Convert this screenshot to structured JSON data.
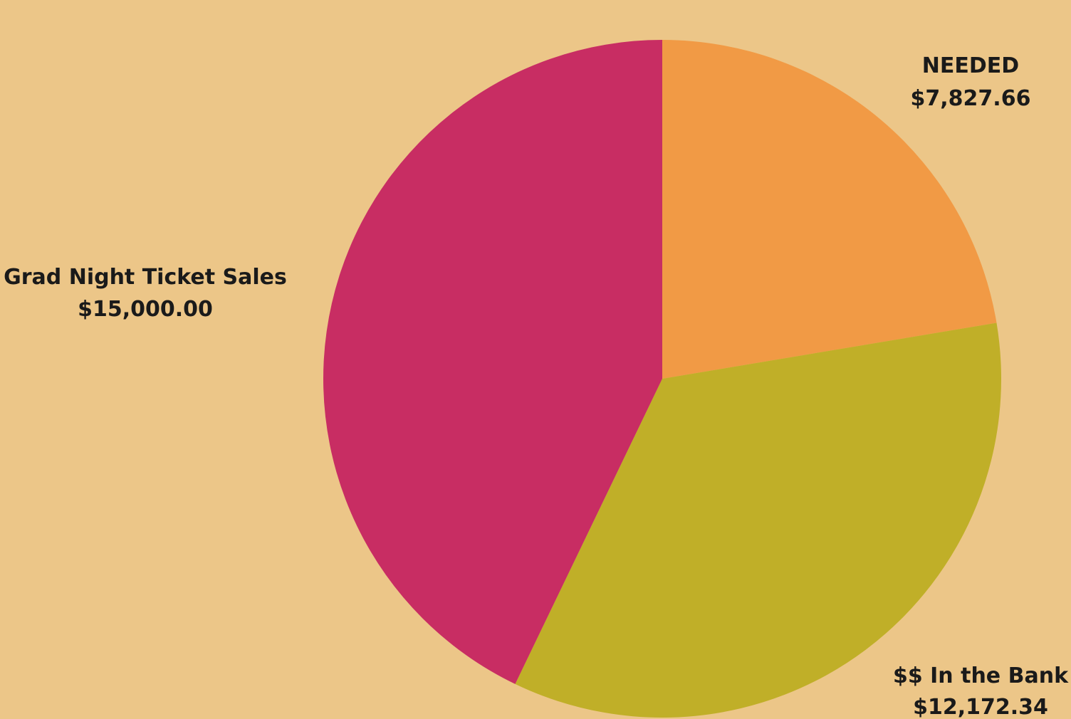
{
  "background_color": "#ECC688",
  "chart_data": {
    "type": "pie",
    "slices": [
      {
        "label": "NEEDED",
        "value_text": "$7,827.66",
        "value": 7827.66,
        "color": "#F19A45"
      },
      {
        "label": "$$ In the Bank",
        "value_text": "$12,172.34",
        "value": 12172.34,
        "color": "#C0AF28"
      },
      {
        "label": "Grad Night Ticket Sales",
        "value_text": "$15,000.00",
        "value": 15000.0,
        "color": "#C82D63"
      }
    ],
    "start_angle": "12 o'clock",
    "direction": "clockwise"
  }
}
